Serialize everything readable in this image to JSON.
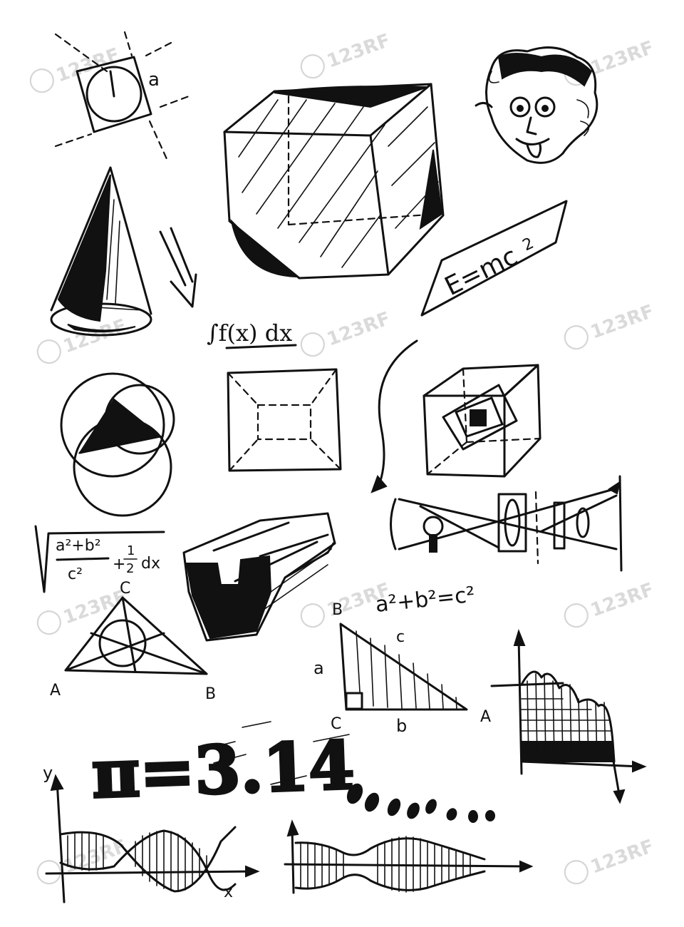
{
  "labels": {
    "square_side": "a",
    "integral": "∫f(x) dx",
    "einstein": "E=mc",
    "einstein_exp": "2",
    "root_numerator": "a²+b²",
    "root_denominator": "c²",
    "root_plus": "+",
    "root_fraction_num": "1",
    "root_fraction_den": "2",
    "root_dx": "dx",
    "triangle_top": "C",
    "triangle_left": "A",
    "triangle_right": "B",
    "pythagoras": "a²+b²=c²",
    "right_tri_top": "B",
    "right_tri_hyp": "c",
    "right_tri_a": "a",
    "right_tri_b": "b",
    "right_tri_corner_c": "C",
    "right_tri_corner_a": "A",
    "pi": "π=3.14",
    "wave_axis_y": "y",
    "wave_axis_x": "x"
  },
  "watermark": {
    "text": "123RF"
  },
  "colors": {
    "ink": "#111111",
    "paper": "#ffffff",
    "watermark": "#d6d6d6"
  }
}
